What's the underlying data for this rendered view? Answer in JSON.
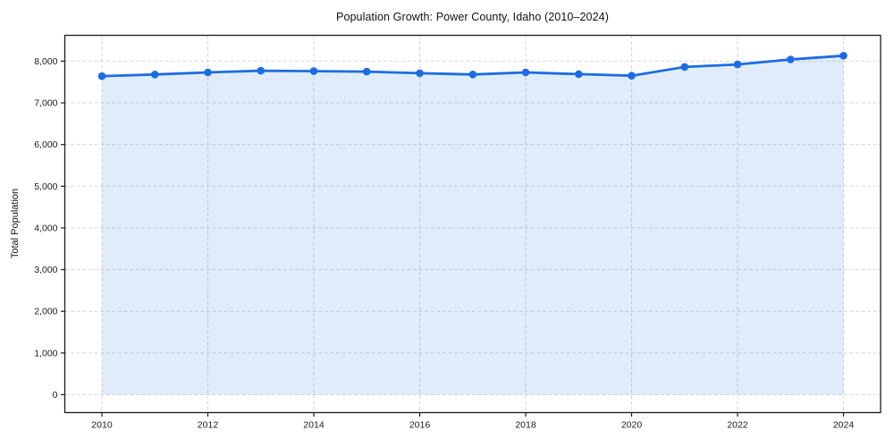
{
  "figure": {
    "title": "Population Growth: Power County, Idaho (2010–2024)",
    "ylabel": "Total Population"
  },
  "chart_data": {
    "type": "line",
    "title": "Population Growth: Power County, Idaho (2010–2024)",
    "xlabel": "",
    "ylabel": "Total Population",
    "x": [
      2010,
      2011,
      2012,
      2013,
      2014,
      2015,
      2016,
      2017,
      2018,
      2019,
      2020,
      2021,
      2022,
      2023,
      2024
    ],
    "series": [
      {
        "name": "Total Population",
        "values": [
          7640,
          7680,
          7730,
          7770,
          7760,
          7750,
          7710,
          7680,
          7730,
          7690,
          7650,
          7860,
          7920,
          8040,
          8130
        ]
      }
    ],
    "x_ticks": [
      2010,
      2012,
      2014,
      2016,
      2018,
      2020,
      2022,
      2024
    ],
    "y_ticks": [
      0,
      1000,
      2000,
      3000,
      4000,
      5000,
      6000,
      7000,
      8000
    ],
    "xlim": [
      2009.3,
      2024.7
    ],
    "ylim": [
      -430,
      8620
    ],
    "grid": true,
    "grid_style": "dashed",
    "legend": false,
    "fill_to_zero": true,
    "line_color": "#1b6de1",
    "fill_color": "rgba(27, 109, 225, 0.13)",
    "marker": "circle",
    "text_color": "#1a1a1a",
    "spine_color": "#1a1a1a"
  }
}
